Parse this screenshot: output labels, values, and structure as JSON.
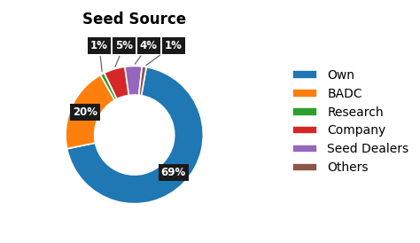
{
  "chart_data": {
    "type": "pie",
    "title": "Seed Source",
    "categories": [
      "Own",
      "BADC",
      "Research",
      "Company",
      "Seed Dealers",
      "Others"
    ],
    "values": [
      69,
      20,
      1,
      5,
      4,
      1
    ],
    "value_labels": [
      "69%",
      "20%",
      "1%",
      "5%",
      "4%",
      "1%"
    ],
    "data_labels": true,
    "legend": "right"
  }
}
